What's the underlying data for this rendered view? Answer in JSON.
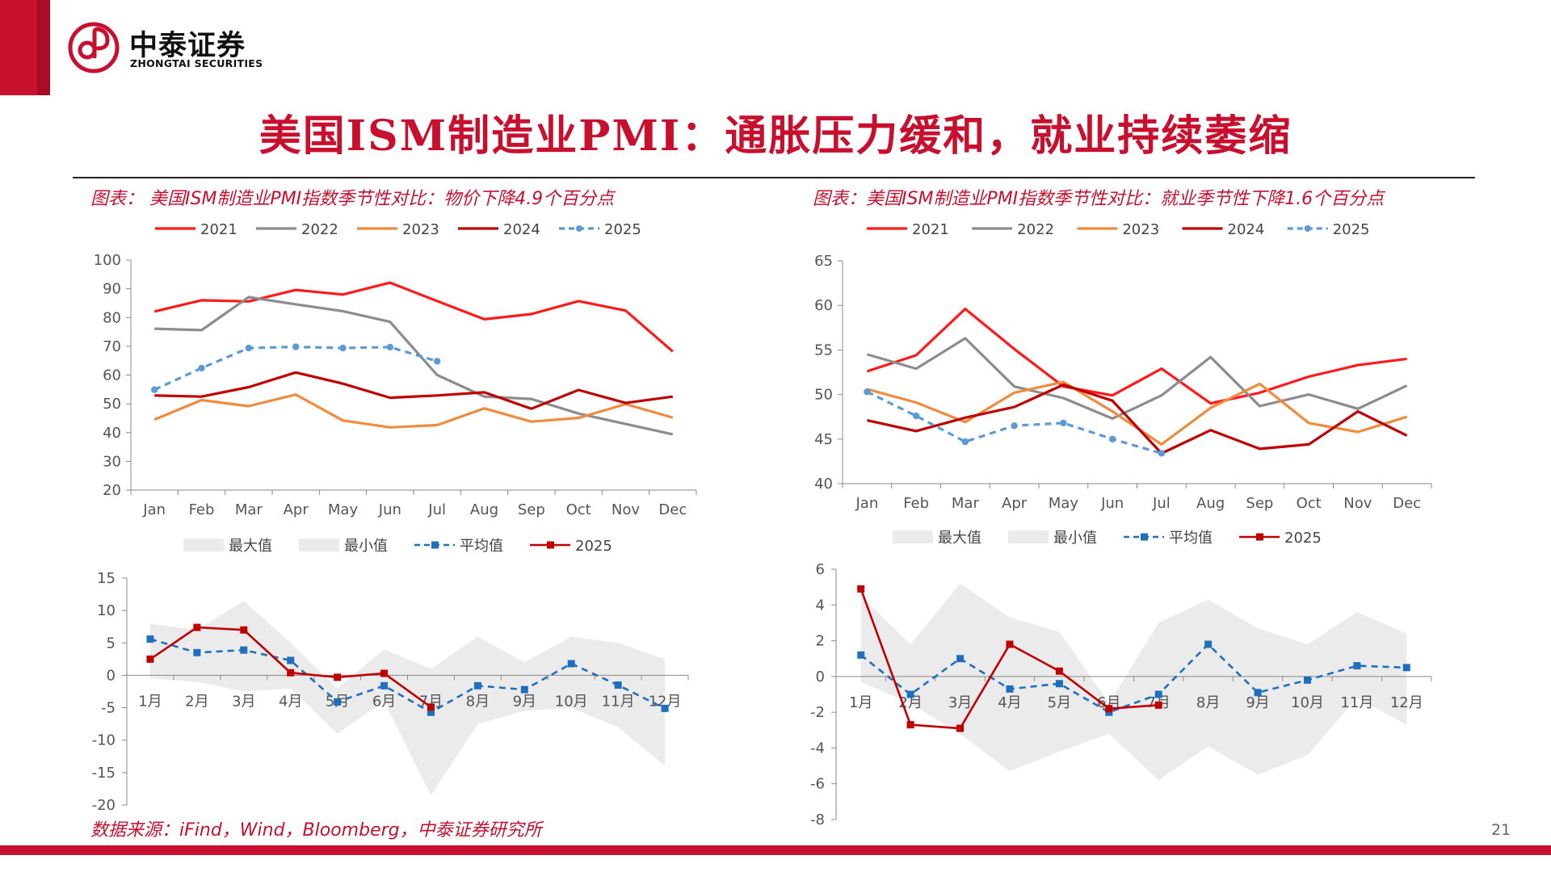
{
  "header": {
    "logo_cn": "中泰证券",
    "logo_en": "ZHONGTAI SECURITIES",
    "title": "美国ISM制造业PMI：通胀压力缓和，就业持续萎缩"
  },
  "captions": {
    "left": "图表：  美国ISM制造业PMI指数季节性对比：物价下降4.9个百分点",
    "right": "图表：美国ISM制造业PMI指数季节性对比：就业季节性下降1.6个百分点"
  },
  "footer": {
    "source": "数据来源：iFind，Wind，Bloomberg，中泰证券研究所",
    "page_number": "21"
  },
  "colors": {
    "brand_red": "#c8102e",
    "s2021": "#ff1a1a",
    "s2022": "#8c8c8c",
    "s2023": "#f08a3c",
    "s2024": "#c00000",
    "s2025": "#5b9bd5",
    "avg": "#1f6fbf",
    "band": "#ebebeb"
  },
  "chart_data": [
    {
      "type": "line",
      "x": [
        "Jan",
        "Feb",
        "Mar",
        "Apr",
        "May",
        "Jun",
        "Jul",
        "Aug",
        "Sep",
        "Oct",
        "Nov",
        "Dec"
      ],
      "ylim": [
        20,
        100
      ],
      "yticks": [
        20,
        30,
        40,
        50,
        60,
        70,
        80,
        90,
        100
      ],
      "series": [
        {
          "name": "2021",
          "values": [
            82.1,
            86.0,
            85.6,
            89.6,
            88.0,
            92.1,
            85.7,
            79.4,
            81.2,
            85.7,
            82.4,
            68.2
          ]
        },
        {
          "name": "2022",
          "values": [
            76.1,
            75.6,
            87.1,
            84.6,
            82.2,
            78.5,
            60.0,
            52.5,
            51.7,
            46.6,
            43.0,
            39.4
          ]
        },
        {
          "name": "2023",
          "values": [
            44.5,
            51.3,
            49.2,
            53.2,
            44.2,
            41.8,
            42.6,
            48.4,
            43.8,
            45.1,
            49.9,
            45.2
          ]
        },
        {
          "name": "2024",
          "values": [
            52.9,
            52.5,
            55.8,
            60.9,
            57.0,
            52.1,
            52.9,
            54.0,
            48.3,
            54.8,
            50.3,
            52.5
          ]
        },
        {
          "name": "2025",
          "values": [
            54.9,
            62.4,
            69.4,
            69.8,
            69.4,
            69.7,
            64.8,
            null,
            null,
            null,
            null,
            null
          ]
        }
      ]
    },
    {
      "type": "line",
      "x": [
        "1月",
        "2月",
        "3月",
        "4月",
        "5月",
        "6月",
        "7月",
        "8月",
        "9月",
        "10月",
        "11月",
        "12月"
      ],
      "ylim": [
        -20,
        15
      ],
      "yticks": [
        15,
        10,
        5,
        0,
        -5,
        -10,
        -15,
        -20
      ],
      "legend": [
        "最大值",
        "最小值",
        "平均值",
        "2025"
      ],
      "band_max": [
        8,
        7,
        11.5,
        5,
        -2,
        4,
        1,
        6,
        2,
        6,
        5,
        2.5
      ],
      "band_min": [
        -0.5,
        -1,
        -2.5,
        -2,
        -9,
        -4,
        -18.5,
        -7.5,
        -5.5,
        -5,
        -8,
        -14
      ],
      "series": [
        {
          "name": "平均值",
          "values": [
            5.6,
            3.5,
            3.9,
            2.3,
            -4.1,
            -1.6,
            -5.7,
            -1.6,
            -2.2,
            1.8,
            -1.5,
            -5.1
          ]
        },
        {
          "name": "2025",
          "values": [
            2.5,
            7.4,
            7.0,
            0.4,
            -0.3,
            0.3,
            -4.9,
            null,
            null,
            null,
            null,
            null
          ]
        }
      ]
    },
    {
      "type": "line",
      "x": [
        "Jan",
        "Feb",
        "Mar",
        "Apr",
        "May",
        "Jun",
        "Jul",
        "Aug",
        "Sep",
        "Oct",
        "Nov",
        "Dec"
      ],
      "ylim": [
        40,
        65
      ],
      "yticks": [
        40,
        45,
        50,
        55,
        60,
        65
      ],
      "series": [
        {
          "name": "2021",
          "values": [
            52.6,
            54.4,
            59.6,
            55.1,
            50.9,
            49.9,
            52.9,
            49.0,
            50.2,
            52.0,
            53.3,
            54.0
          ]
        },
        {
          "name": "2022",
          "values": [
            54.5,
            52.9,
            56.3,
            50.9,
            49.6,
            47.3,
            49.9,
            54.2,
            48.7,
            50.0,
            48.4,
            51.0
          ]
        },
        {
          "name": "2023",
          "values": [
            50.6,
            49.1,
            46.9,
            50.2,
            51.4,
            48.1,
            44.4,
            48.5,
            51.2,
            46.8,
            45.8,
            47.5
          ]
        },
        {
          "name": "2024",
          "values": [
            47.1,
            45.9,
            47.4,
            48.6,
            51.1,
            49.3,
            43.4,
            46.0,
            43.9,
            44.4,
            48.1,
            45.4
          ]
        },
        {
          "name": "2025",
          "values": [
            50.3,
            47.6,
            44.7,
            46.5,
            46.8,
            45.0,
            43.4,
            null,
            null,
            null,
            null,
            null
          ]
        }
      ]
    },
    {
      "type": "line",
      "x": [
        "1月",
        "2月",
        "3月",
        "4月",
        "5月",
        "6月",
        "7月",
        "8月",
        "9月",
        "10月",
        "11月",
        "12月"
      ],
      "ylim": [
        -8,
        6
      ],
      "yticks": [
        6,
        4,
        2,
        0,
        -2,
        -4,
        -6,
        -8
      ],
      "legend": [
        "最大值",
        "最小值",
        "平均值",
        "2025"
      ],
      "band_max": [
        4.5,
        1.8,
        5.2,
        3.3,
        2.5,
        -1.5,
        3.0,
        4.3,
        2.7,
        1.8,
        3.6,
        2.4
      ],
      "band_min": [
        -0.3,
        -1.5,
        -3.2,
        -5.3,
        -4.2,
        -3.2,
        -5.8,
        -3.9,
        -5.5,
        -4.4,
        -1.2,
        -2.7
      ],
      "series": [
        {
          "name": "平均值",
          "values": [
            1.2,
            -1.0,
            1.0,
            -0.7,
            -0.4,
            -2.0,
            -1.0,
            1.8,
            -0.9,
            -0.2,
            0.6,
            0.5
          ]
        },
        {
          "name": "2025",
          "values": [
            4.9,
            -2.7,
            -2.9,
            1.8,
            0.3,
            -1.8,
            -1.6,
            null,
            null,
            null,
            null,
            null
          ]
        }
      ]
    }
  ]
}
